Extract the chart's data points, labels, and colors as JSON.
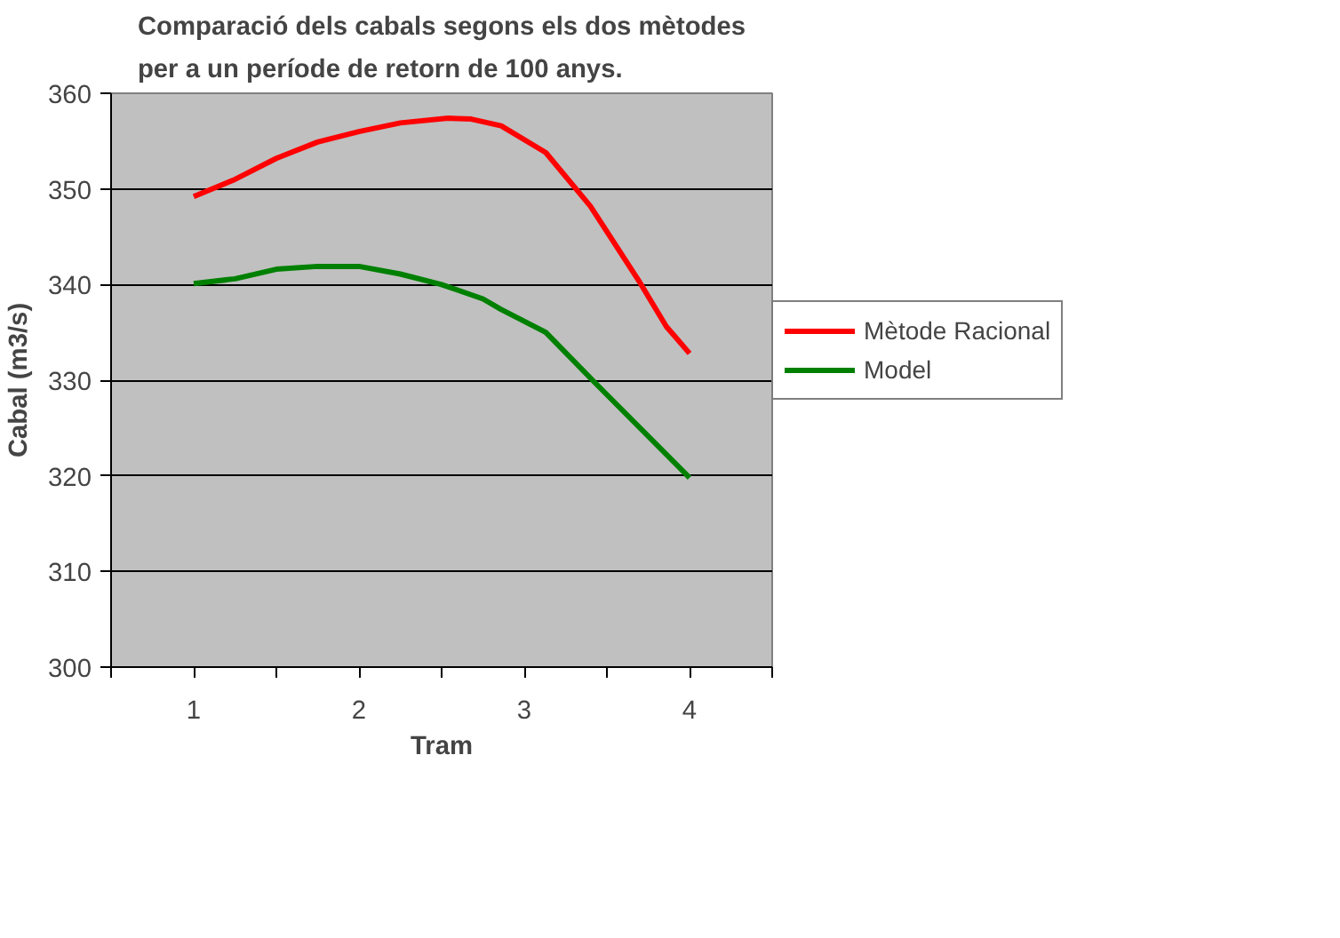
{
  "chart_data": {
    "type": "line",
    "title": "Comparació dels cabals segons els dos mètodes\nper a un període de retorn de 100 anys.",
    "xlabel": "Tram",
    "ylabel": "Cabal (m3/s)",
    "xlim": [
      0.5,
      4.5
    ],
    "xticks": [
      {
        "value": 0.5,
        "label": null
      },
      1,
      {
        "value": 1.5,
        "label": null
      },
      2,
      {
        "value": 2.5,
        "label": null
      },
      3,
      {
        "value": 3.5,
        "label": null
      },
      4,
      {
        "value": 4.5,
        "label": null
      }
    ],
    "ylim": [
      300,
      360
    ],
    "yticks": [
      300,
      310,
      320,
      330,
      340,
      350,
      360
    ],
    "grid": "y",
    "legend": "right",
    "marker": "none",
    "line_style": "solid",
    "series": [
      {
        "name": "Mètode Racional",
        "color": "#ff0000",
        "x": [
          1.0,
          1.25,
          1.5,
          1.75,
          2.0,
          2.25,
          2.54,
          2.68,
          2.86,
          3.13,
          3.4,
          3.7,
          3.86,
          4.0
        ],
        "values": [
          349.2,
          351.0,
          353.2,
          354.9,
          356.0,
          356.9,
          357.4,
          357.3,
          356.6,
          353.8,
          348.2,
          340.2,
          335.6,
          332.8
        ]
      },
      {
        "name": "Model",
        "color": "#008000",
        "x": [
          1.0,
          1.25,
          1.5,
          1.75,
          2.0,
          2.25,
          2.5,
          2.75,
          2.86,
          3.13,
          3.43,
          4.0
        ],
        "values": [
          340.1,
          340.6,
          341.6,
          341.9,
          341.9,
          341.1,
          340.0,
          338.5,
          337.4,
          335.0,
          329.7,
          319.8
        ]
      }
    ]
  }
}
